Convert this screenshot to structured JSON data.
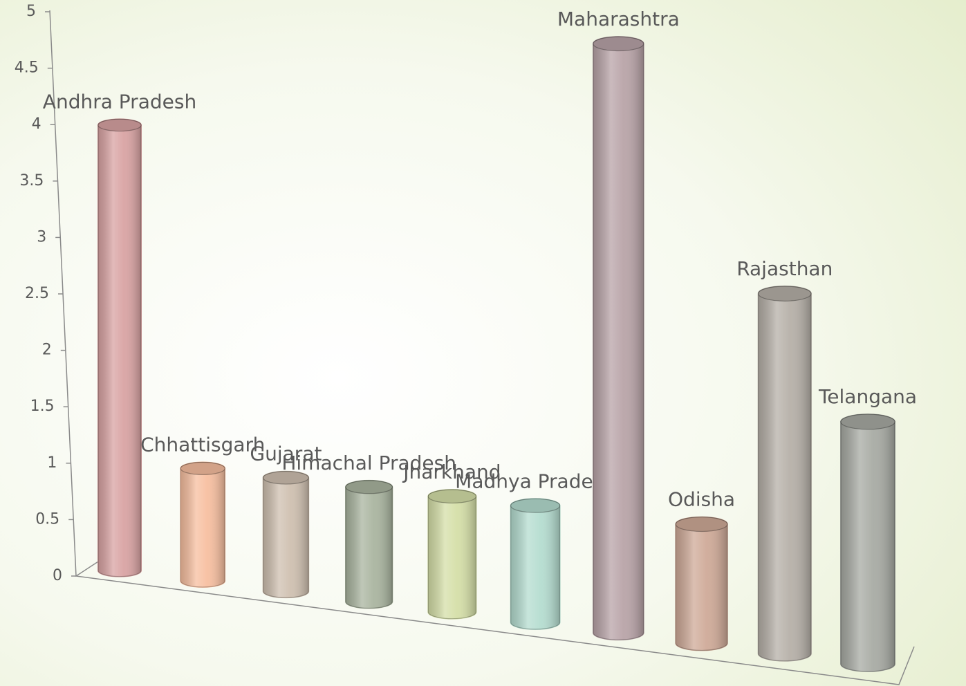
{
  "chart_data": {
    "type": "bar",
    "categories": [
      "Andhra Pradesh",
      "Chhattisgarh",
      "Gujarat",
      "Himachal Pradesh",
      "Jharkhand",
      "Madhya Pradesh",
      "Maharashtra",
      "Odisha",
      "Rajasthan",
      "Telangana"
    ],
    "values": [
      4,
      1,
      1,
      1,
      1,
      1,
      5,
      1,
      3,
      2
    ],
    "colors": [
      "#d9a3a3",
      "#f7bfa0",
      "#cfc0b0",
      "#aab5a0",
      "#d5dfa8",
      "#b5ddd0",
      "#b9a4a8",
      "#cfaa98",
      "#b6b0a8",
      "#a8aba4"
    ],
    "ylim": [
      0,
      5
    ],
    "yticks": [
      0,
      0.5,
      1,
      1.5,
      2,
      2.5,
      3,
      3.5,
      4,
      4.5,
      5
    ]
  }
}
